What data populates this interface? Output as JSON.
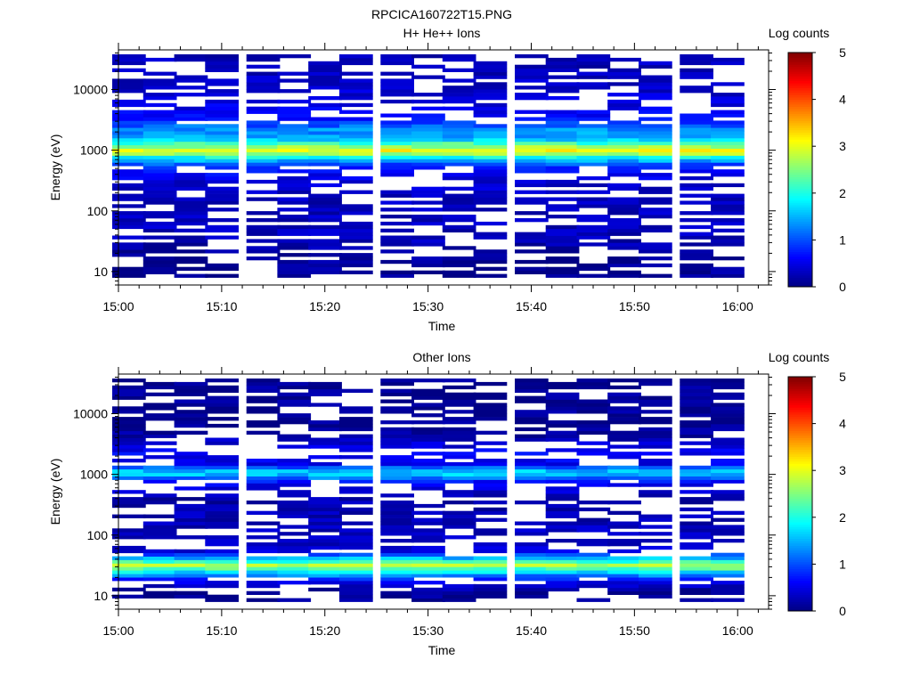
{
  "figure_title": "RPCICA160722T15.PNG",
  "chart_data": [
    {
      "type": "heatmap",
      "title": "H+ He++ Ions",
      "xlabel": "Time",
      "ylabel": "Energy (eV)",
      "y_scale": "log",
      "ylim": [
        6,
        45000
      ],
      "xlim": [
        "15:00",
        "16:03"
      ],
      "x_tick_labels": [
        "15:00",
        "15:10",
        "15:20",
        "15:30",
        "15:40",
        "15:50",
        "16:00"
      ],
      "y_tick_labels": [
        "10",
        "100",
        "1000",
        "10000"
      ],
      "colorbar": {
        "label": "Log counts",
        "min": 0,
        "max": 5,
        "tick_labels": [
          "0",
          "1",
          "2",
          "3",
          "4",
          "5"
        ]
      },
      "time_bins": [
        "15:01",
        "15:04",
        "15:07",
        "15:10",
        "15:14",
        "15:17",
        "15:20",
        "15:23",
        "15:27",
        "15:30",
        "15:33",
        "15:36",
        "15:40",
        "15:43",
        "15:46",
        "15:49",
        "15:52",
        "15:56",
        "15:59"
      ],
      "energy_profile": [
        {
          "energy_ev": 10,
          "log_counts": 0.1
        },
        {
          "energy_ev": 15,
          "log_counts": 0.1
        },
        {
          "energy_ev": 25,
          "log_counts": 0.2
        },
        {
          "energy_ev": 40,
          "log_counts": 0.3
        },
        {
          "energy_ev": 70,
          "log_counts": 0.3
        },
        {
          "energy_ev": 150,
          "log_counts": 0.3
        },
        {
          "energy_ev": 300,
          "log_counts": 0.4
        },
        {
          "energy_ev": 550,
          "log_counts": 0.8
        },
        {
          "energy_ev": 750,
          "log_counts": 1.8
        },
        {
          "energy_ev": 950,
          "log_counts": 3.2
        },
        {
          "energy_ev": 1200,
          "log_counts": 2.5
        },
        {
          "energy_ev": 1600,
          "log_counts": 1.4
        },
        {
          "energy_ev": 2200,
          "log_counts": 1.3
        },
        {
          "energy_ev": 3500,
          "log_counts": 0.6
        },
        {
          "energy_ev": 8000,
          "log_counts": 0.4
        },
        {
          "energy_ev": 20000,
          "log_counts": 0.3
        },
        {
          "energy_ev": 35000,
          "log_counts": 0.3
        }
      ],
      "max_log_counts": 3.6
    },
    {
      "type": "heatmap",
      "title": "Other Ions",
      "xlabel": "Time",
      "ylabel": "Energy (eV)",
      "y_scale": "log",
      "ylim": [
        6,
        45000
      ],
      "xlim": [
        "15:00",
        "16:03"
      ],
      "x_tick_labels": [
        "15:00",
        "15:10",
        "15:20",
        "15:30",
        "15:40",
        "15:50",
        "16:00"
      ],
      "y_tick_labels": [
        "10",
        "100",
        "1000",
        "10000"
      ],
      "colorbar": {
        "label": "Log counts",
        "min": 0,
        "max": 5,
        "tick_labels": [
          "0",
          "1",
          "2",
          "3",
          "4",
          "5"
        ]
      },
      "time_bins": [
        "15:01",
        "15:04",
        "15:07",
        "15:10",
        "15:14",
        "15:17",
        "15:20",
        "15:23",
        "15:27",
        "15:30",
        "15:33",
        "15:36",
        "15:40",
        "15:43",
        "15:46",
        "15:49",
        "15:52",
        "15:56",
        "15:59"
      ],
      "energy_profile": [
        {
          "energy_ev": 8,
          "log_counts": 0.1
        },
        {
          "energy_ev": 12,
          "log_counts": 0.1
        },
        {
          "energy_ev": 18,
          "log_counts": 0.6
        },
        {
          "energy_ev": 25,
          "log_counts": 1.8
        },
        {
          "energy_ev": 32,
          "log_counts": 2.8
        },
        {
          "energy_ev": 40,
          "log_counts": 1.7
        },
        {
          "energy_ev": 55,
          "log_counts": 0.4
        },
        {
          "energy_ev": 120,
          "log_counts": 0.3
        },
        {
          "energy_ev": 400,
          "log_counts": 0.2
        },
        {
          "energy_ev": 750,
          "log_counts": 0.6
        },
        {
          "energy_ev": 950,
          "log_counts": 1.5
        },
        {
          "energy_ev": 1100,
          "log_counts": 1.7
        },
        {
          "energy_ev": 1500,
          "log_counts": 0.5
        },
        {
          "energy_ev": 2300,
          "log_counts": 0.6
        },
        {
          "energy_ev": 5000,
          "log_counts": 0.1
        },
        {
          "energy_ev": 20000,
          "log_counts": 0.1
        },
        {
          "energy_ev": 35000,
          "log_counts": 0.1
        }
      ],
      "max_log_counts": 2.9
    }
  ]
}
